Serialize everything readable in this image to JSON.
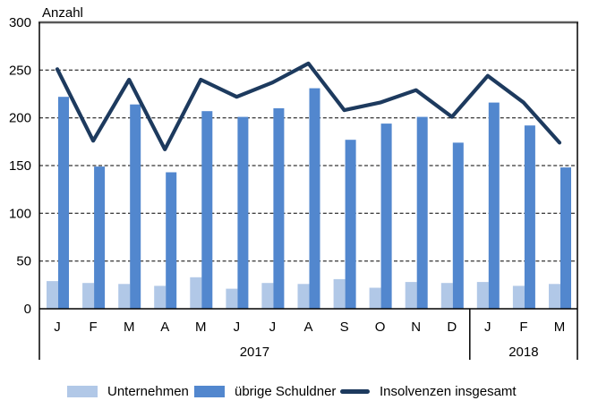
{
  "chart_data": {
    "type": "bar+line",
    "title": "",
    "ylabel": "Anzahl",
    "xlabel": "",
    "ylim": [
      0,
      300
    ],
    "ytick_interval": 50,
    "yticks": [
      300,
      250,
      200,
      150,
      100,
      50,
      0
    ],
    "grid": "horizontal dashed",
    "legend_position": "bottom",
    "categories": [
      "J",
      "F",
      "M",
      "A",
      "M",
      "J",
      "J",
      "A",
      "S",
      "O",
      "N",
      "D",
      "J",
      "F",
      "M"
    ],
    "year_groups": [
      {
        "label": "2017",
        "span": 12
      },
      {
        "label": "2018",
        "span": 3
      }
    ],
    "series": [
      {
        "name": "Unternehmen",
        "type": "bar",
        "color": "#b1c8e7",
        "values": [
          29,
          27,
          26,
          24,
          33,
          21,
          27,
          26,
          31,
          22,
          28,
          27,
          28,
          24,
          26
        ]
      },
      {
        "name": "übrige Schuldner",
        "type": "bar",
        "color": "#5287ce",
        "values": [
          222,
          149,
          214,
          143,
          207,
          201,
          210,
          231,
          177,
          194,
          201,
          174,
          216,
          192,
          148
        ]
      },
      {
        "name": "Insolvenzen insgesamt",
        "type": "line",
        "color": "#1d3a5e",
        "values": [
          251,
          176,
          240,
          167,
          240,
          222,
          237,
          257,
          208,
          216,
          229,
          201,
          244,
          216,
          174
        ]
      }
    ],
    "frame_top_color": "#595959",
    "axis_color": "#000000"
  }
}
